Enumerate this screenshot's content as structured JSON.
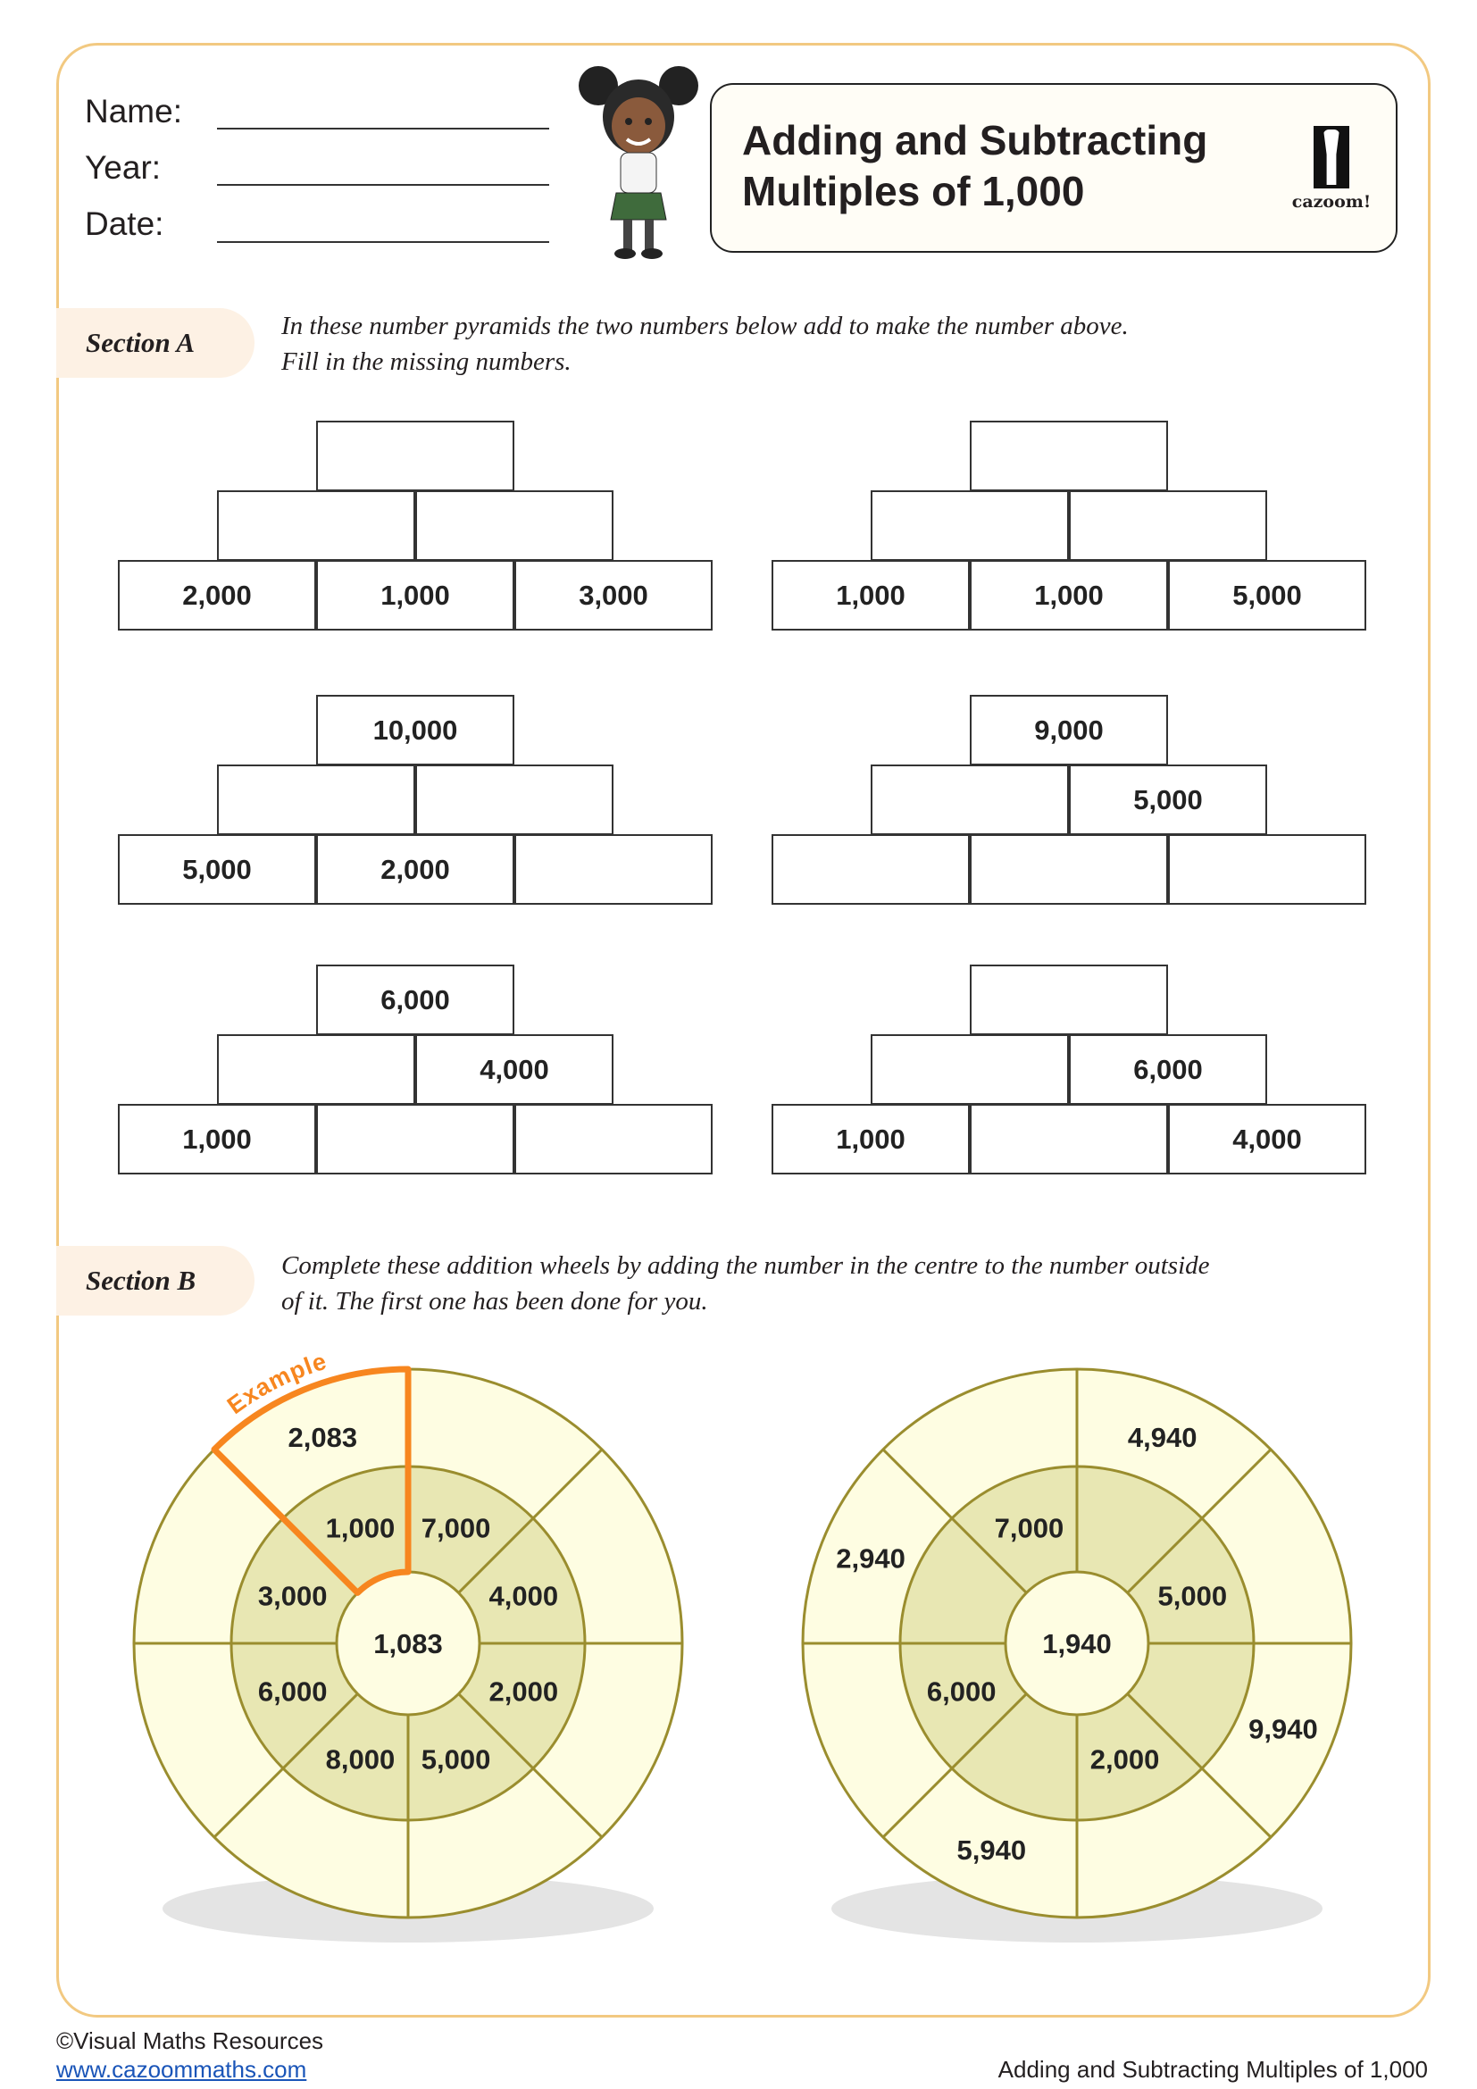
{
  "header": {
    "fields": [
      {
        "label": "Name:"
      },
      {
        "label": "Year:"
      },
      {
        "label": "Date:"
      }
    ],
    "title_line1": "Adding and Subtracting",
    "title_line2": "Multiples of 1,000",
    "logo_text": "cazoom!"
  },
  "section_a": {
    "label": "Section A",
    "instruction_line1": "In these number pyramids the two numbers below add to make the number above.",
    "instruction_line2": "Fill in the missing numbers.",
    "pyramids": [
      {
        "top": "",
        "middle": [
          "",
          ""
        ],
        "bottom": [
          "2,000",
          "1,000",
          "3,000"
        ]
      },
      {
        "top": "",
        "middle": [
          "",
          ""
        ],
        "bottom": [
          "1,000",
          "1,000",
          "5,000"
        ]
      },
      {
        "top": "10,000",
        "middle": [
          "",
          ""
        ],
        "bottom": [
          "5,000",
          "2,000",
          ""
        ]
      },
      {
        "top": "9,000",
        "middle": [
          "",
          "5,000"
        ],
        "bottom": [
          "",
          "",
          ""
        ]
      },
      {
        "top": "6,000",
        "middle": [
          "",
          "4,000"
        ],
        "bottom": [
          "1,000",
          "",
          ""
        ]
      },
      {
        "top": "",
        "middle": [
          "",
          "6,000"
        ],
        "bottom": [
          "1,000",
          "",
          "4,000"
        ]
      }
    ]
  },
  "section_b": {
    "label": "Section B",
    "instruction_line1": "Complete these addition wheels by adding the number in the centre to the number outside",
    "instruction_line2": "of it. The first one has been done for you.",
    "example_label": "Example",
    "colors": {
      "outer": "#fefde2",
      "inner": "#e8e7b3",
      "line": "#9a8d2e",
      "highlight": "#f7861f",
      "shadow": "#e4e4e4"
    },
    "wheels": [
      {
        "centre": "1,083",
        "inner": [
          "1,000",
          "7,000",
          "4,000",
          "2,000",
          "5,000",
          "8,000",
          "6,000",
          "3,000"
        ],
        "outer": [
          "2,083",
          "",
          "",
          "",
          "",
          "",
          "",
          ""
        ],
        "example": true
      },
      {
        "centre": "1,940",
        "inner": [
          "7,000",
          "",
          "5,000",
          "",
          "2,000",
          "",
          "6,000",
          ""
        ],
        "outer": [
          "",
          "4,940",
          "",
          "9,940",
          "",
          "5,940",
          "",
          "2,940"
        ],
        "example": false
      }
    ]
  },
  "footer": {
    "copyright": "©Visual Maths Resources",
    "link": "www.cazoommaths.com",
    "page_title": "Adding and Subtracting Multiples of 1,000"
  }
}
